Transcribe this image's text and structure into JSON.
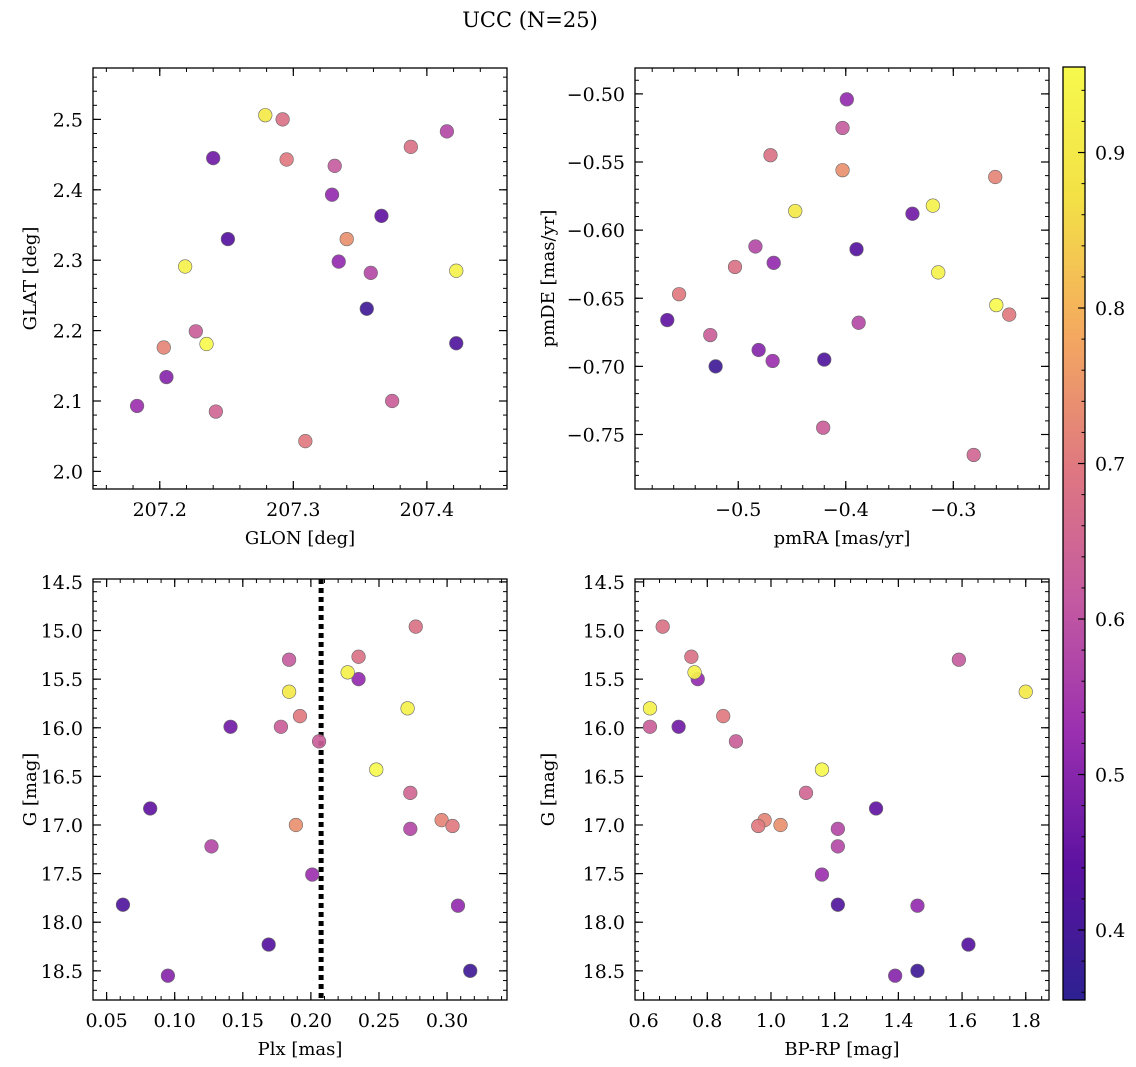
{
  "chart_data": {
    "title": "UCC (N=25)",
    "type": "scatter",
    "colormap": "plasma",
    "colorbar": {
      "range": [
        0.355,
        0.955
      ],
      "ticks": [
        0.4,
        0.5,
        0.6,
        0.7,
        0.8,
        0.9
      ],
      "tick_labels": [
        "0.4",
        "0.5",
        "0.6",
        "0.7",
        "0.8",
        "0.9"
      ],
      "ramp": [
        "#2d2191",
        "#5c12a0",
        "#9a2fb0",
        "#c45aa1",
        "#df7880",
        "#f4a95f",
        "#f3e046",
        "#f6f94e"
      ]
    },
    "points": [
      {
        "glon": 207.279,
        "glat": 2.506,
        "pmra": -0.447,
        "pmde": -0.586,
        "plx": 0.184,
        "g": 15.63,
        "bprp": 1.8,
        "c": 0.9
      },
      {
        "glon": 207.292,
        "glat": 2.5,
        "pmra": -0.503,
        "pmde": -0.627,
        "plx": 0.277,
        "g": 14.96,
        "bprp": 0.66,
        "c": 0.68
      },
      {
        "glon": 207.24,
        "glat": 2.445,
        "pmra": -0.338,
        "pmde": -0.588,
        "plx": 0.141,
        "g": 15.99,
        "bprp": 0.71,
        "c": 0.47
      },
      {
        "glon": 207.295,
        "glat": 2.443,
        "pmra": -0.555,
        "pmde": -0.647,
        "plx": 0.192,
        "g": 15.88,
        "bprp": 0.85,
        "c": 0.7
      },
      {
        "glon": 207.331,
        "glat": 2.434,
        "pmra": -0.403,
        "pmde": -0.525,
        "plx": 0.184,
        "g": 15.3,
        "bprp": 1.59,
        "c": 0.62
      },
      {
        "glon": 207.388,
        "glat": 2.461,
        "pmra": -0.47,
        "pmde": -0.545,
        "plx": 0.235,
        "g": 15.27,
        "bprp": 0.75,
        "c": 0.68
      },
      {
        "glon": 207.415,
        "glat": 2.483,
        "pmra": -0.484,
        "pmde": -0.612,
        "plx": 0.273,
        "g": 17.04,
        "bprp": 1.21,
        "c": 0.58
      },
      {
        "glon": 207.329,
        "glat": 2.393,
        "pmra": -0.399,
        "pmde": -0.504,
        "plx": 0.235,
        "g": 15.5,
        "bprp": 0.77,
        "c": 0.52
      },
      {
        "glon": 207.366,
        "glat": 2.363,
        "pmra": -0.566,
        "pmde": -0.666,
        "plx": 0.082,
        "g": 16.83,
        "bprp": 1.33,
        "c": 0.45
      },
      {
        "glon": 207.251,
        "glat": 2.33,
        "pmra": -0.39,
        "pmde": -0.614,
        "plx": 0.169,
        "g": 18.23,
        "bprp": 1.62,
        "c": 0.43
      },
      {
        "glon": 207.34,
        "glat": 2.33,
        "pmra": -0.403,
        "pmde": -0.556,
        "plx": 0.189,
        "g": 17.0,
        "bprp": 1.03,
        "c": 0.74
      },
      {
        "glon": 207.219,
        "glat": 2.291,
        "pmra": -0.319,
        "pmde": -0.582,
        "plx": 0.271,
        "g": 15.8,
        "bprp": 0.62,
        "c": 0.93
      },
      {
        "glon": 207.334,
        "glat": 2.298,
        "pmra": -0.467,
        "pmde": -0.624,
        "plx": 0.308,
        "g": 17.83,
        "bprp": 1.46,
        "c": 0.52
      },
      {
        "glon": 207.358,
        "glat": 2.282,
        "pmra": -0.388,
        "pmde": -0.668,
        "plx": 0.127,
        "g": 17.22,
        "bprp": 1.21,
        "c": 0.58
      },
      {
        "glon": 207.422,
        "glat": 2.285,
        "pmra": -0.314,
        "pmde": -0.631,
        "plx": 0.227,
        "g": 15.43,
        "bprp": 0.76,
        "c": 0.93
      },
      {
        "glon": 207.355,
        "glat": 2.231,
        "pmra": -0.521,
        "pmde": -0.7,
        "plx": 0.317,
        "g": 18.5,
        "bprp": 1.46,
        "c": 0.39
      },
      {
        "glon": 207.227,
        "glat": 2.199,
        "pmra": -0.526,
        "pmde": -0.677,
        "plx": 0.178,
        "g": 15.99,
        "bprp": 0.62,
        "c": 0.63
      },
      {
        "glon": 207.203,
        "glat": 2.176,
        "pmra": -0.261,
        "pmde": -0.561,
        "plx": 0.296,
        "g": 16.95,
        "bprp": 0.98,
        "c": 0.72
      },
      {
        "glon": 207.235,
        "glat": 2.181,
        "pmra": -0.26,
        "pmde": -0.655,
        "plx": 0.248,
        "g": 16.43,
        "bprp": 1.16,
        "c": 0.95
      },
      {
        "glon": 207.422,
        "glat": 2.182,
        "pmra": -0.42,
        "pmde": -0.695,
        "plx": 0.062,
        "g": 17.82,
        "bprp": 1.21,
        "c": 0.42
      },
      {
        "glon": 207.205,
        "glat": 2.134,
        "pmra": -0.481,
        "pmde": -0.688,
        "plx": 0.095,
        "g": 18.55,
        "bprp": 1.39,
        "c": 0.5
      },
      {
        "glon": 207.183,
        "glat": 2.093,
        "pmra": -0.468,
        "pmde": -0.696,
        "plx": 0.201,
        "g": 17.51,
        "bprp": 1.16,
        "c": 0.53
      },
      {
        "glon": 207.374,
        "glat": 2.1,
        "pmra": -0.421,
        "pmde": -0.745,
        "plx": 0.206,
        "g": 16.14,
        "bprp": 0.89,
        "c": 0.63
      },
      {
        "glon": 207.242,
        "glat": 2.085,
        "pmra": -0.281,
        "pmde": -0.765,
        "plx": 0.273,
        "g": 16.67,
        "bprp": 1.11,
        "c": 0.65
      },
      {
        "glon": 207.309,
        "glat": 2.043,
        "pmra": -0.248,
        "pmde": -0.662,
        "plx": 0.304,
        "g": 17.01,
        "bprp": 0.96,
        "c": 0.7
      }
    ],
    "panels": [
      {
        "x_field": "glon",
        "y_field": "glat",
        "xlabel": "GLON [deg]",
        "ylabel": "GLAT [deg]",
        "xlim": [
          207.15,
          207.46
        ],
        "ylim": [
          1.975,
          2.573
        ],
        "invert_y": false,
        "x_ticks": [
          207.2,
          207.3,
          207.4
        ],
        "x_tick_labels": [
          "207.2",
          "207.3",
          "207.4"
        ],
        "x_minor_step": 0.02,
        "y_ticks": [
          2.0,
          2.1,
          2.2,
          2.3,
          2.4,
          2.5
        ],
        "y_tick_labels": [
          "2.0",
          "2.1",
          "2.2",
          "2.3",
          "2.4",
          "2.5"
        ],
        "y_minor_step": 0.02
      },
      {
        "x_field": "pmra",
        "y_field": "pmde",
        "xlabel": "pmRA [mas/yr]",
        "ylabel": "pmDE [mas/yr]",
        "xlim": [
          -0.596,
          -0.211
        ],
        "ylim": [
          -0.79,
          -0.481
        ],
        "invert_y": false,
        "x_ticks": [
          -0.5,
          -0.4,
          -0.3
        ],
        "x_tick_labels": [
          "−0.5",
          "−0.4",
          "−0.3"
        ],
        "x_minor_step": 0.02,
        "y_ticks": [
          -0.75,
          -0.7,
          -0.65,
          -0.6,
          -0.55,
          -0.5
        ],
        "y_tick_labels": [
          "−0.75",
          "−0.70",
          "−0.65",
          "−0.60",
          "−0.55",
          "−0.50"
        ],
        "y_minor_step": 0.01
      },
      {
        "x_field": "plx",
        "y_field": "g",
        "xlabel": "Plx [mas]",
        "ylabel": "G [mag]",
        "xlim": [
          0.04,
          0.344
        ],
        "ylim": [
          18.8,
          14.47
        ],
        "invert_y": true,
        "x_ticks": [
          0.05,
          0.1,
          0.15,
          0.2,
          0.25,
          0.3
        ],
        "x_tick_labels": [
          "0.05",
          "0.10",
          "0.15",
          "0.20",
          "0.25",
          "0.30"
        ],
        "x_minor_step": 0.01,
        "y_ticks": [
          14.5,
          15.0,
          15.5,
          16.0,
          16.5,
          17.0,
          17.5,
          18.0,
          18.5
        ],
        "y_tick_labels": [
          "14.5",
          "15.0",
          "15.5",
          "16.0",
          "16.5",
          "17.0",
          "17.5",
          "18.0",
          "18.5"
        ],
        "y_minor_step": 0.1,
        "vline": {
          "x": 0.2075,
          "style": "dotted"
        }
      },
      {
        "x_field": "bprp",
        "y_field": "g",
        "xlabel": "BP-RP [mag]",
        "ylabel": "G [mag]",
        "xlim": [
          0.573,
          1.873
        ],
        "ylim": [
          18.8,
          14.47
        ],
        "invert_y": true,
        "x_ticks": [
          0.6,
          0.8,
          1.0,
          1.2,
          1.4,
          1.6,
          1.8
        ],
        "x_tick_labels": [
          "0.6",
          "0.8",
          "1.0",
          "1.2",
          "1.4",
          "1.6",
          "1.8"
        ],
        "x_minor_step": 0.05,
        "y_ticks": [
          14.5,
          15.0,
          15.5,
          16.0,
          16.5,
          17.0,
          17.5,
          18.0,
          18.5
        ],
        "y_tick_labels": [
          "14.5",
          "15.0",
          "15.5",
          "16.0",
          "16.5",
          "17.0",
          "17.5",
          "18.0",
          "18.5"
        ],
        "y_minor_step": 0.1
      }
    ]
  }
}
